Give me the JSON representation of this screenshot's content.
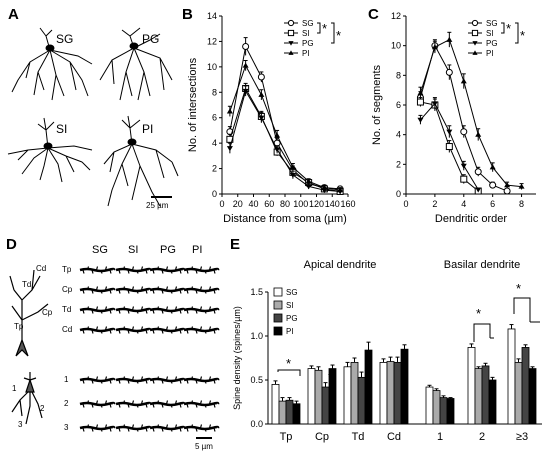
{
  "panels": {
    "A": "A",
    "B": "B",
    "C": "C",
    "D": "D",
    "E": "E"
  },
  "panel_a": {
    "labels": [
      "SG",
      "PG",
      "SI",
      "PI"
    ],
    "scale": "25 µm"
  },
  "panel_d": {
    "cols": [
      "SG",
      "SI",
      "PG",
      "PI"
    ],
    "rows_apical": [
      "Tp",
      "Cp",
      "Td",
      "Cd"
    ],
    "rows_basal": [
      "1",
      "2",
      "3"
    ],
    "neuron_labels": [
      "Cd",
      "Td",
      "Cp",
      "Tp",
      "1",
      "2",
      "3"
    ],
    "scale": "5 µm"
  },
  "chart_data": [
    {
      "type": "line",
      "panel": "B",
      "ylabel": "No. of intersections",
      "xlabel": "Distance from soma (µm)",
      "xlim": [
        0,
        160
      ],
      "ylim": [
        0,
        14
      ],
      "xticks": [
        0,
        20,
        40,
        60,
        80,
        100,
        120,
        140,
        160
      ],
      "yticks": [
        0,
        2,
        4,
        6,
        8,
        10,
        12,
        14
      ],
      "x": [
        10,
        30,
        50,
        70,
        90,
        110,
        130,
        150
      ],
      "series": [
        {
          "name": "SG",
          "marker": "circle-open",
          "values": [
            4.9,
            11.6,
            9.2,
            4.0,
            1.9,
            0.8,
            0.5,
            0.4
          ],
          "errors": [
            0.4,
            0.7,
            0.4,
            0.4,
            0.3,
            0.2,
            0.2,
            0.2
          ]
        },
        {
          "name": "SI",
          "marker": "square-open",
          "values": [
            4.3,
            8.3,
            6.1,
            3.3,
            1.7,
            0.9,
            0.4,
            0.2
          ],
          "errors": [
            0.4,
            0.4,
            0.4,
            0.3,
            0.3,
            0.2,
            0.2,
            0.1
          ]
        },
        {
          "name": "PG",
          "marker": "triangle-down",
          "values": [
            3.6,
            8.1,
            6.0,
            3.5,
            1.5,
            0.6,
            0.3,
            0.2
          ],
          "errors": [
            0.4,
            0.4,
            0.4,
            0.3,
            0.3,
            0.2,
            0.2,
            0.1
          ]
        },
        {
          "name": "PI",
          "marker": "triangle-up",
          "values": [
            6.5,
            10.1,
            7.8,
            4.6,
            2.1,
            1.0,
            0.5,
            0.3
          ],
          "errors": [
            0.4,
            0.4,
            0.4,
            0.4,
            0.3,
            0.2,
            0.2,
            0.2
          ]
        }
      ],
      "sig": [
        "*",
        "*"
      ]
    },
    {
      "type": "line",
      "panel": "C",
      "ylabel": "No. of segments",
      "xlabel": "Dendritic order",
      "xlim": [
        0,
        9
      ],
      "ylim": [
        0,
        12
      ],
      "xticks": [
        0,
        2,
        4,
        6,
        8
      ],
      "yticks": [
        0,
        2,
        4,
        6,
        8,
        10,
        12
      ],
      "x": [
        1,
        2,
        3,
        4,
        5,
        6,
        7,
        8
      ],
      "series": [
        {
          "name": "SG",
          "marker": "circle-open",
          "values": [
            6.5,
            10.0,
            8.2,
            4.2,
            1.5,
            0.6,
            0.2,
            null
          ],
          "errors": [
            0.4,
            0.4,
            0.5,
            0.4,
            0.3,
            0.2,
            0.1,
            null
          ]
        },
        {
          "name": "SI",
          "marker": "square-open",
          "values": [
            6.2,
            6.0,
            3.2,
            1.0,
            0.2,
            null,
            null,
            null
          ],
          "errors": [
            0.3,
            0.4,
            0.4,
            0.3,
            0.1,
            null,
            null,
            null
          ]
        },
        {
          "name": "PG",
          "marker": "triangle-down",
          "values": [
            5.0,
            6.1,
            4.2,
            1.9,
            0.3,
            null,
            null,
            null
          ],
          "errors": [
            0.3,
            0.4,
            0.4,
            0.3,
            0.1,
            null,
            null,
            null
          ]
        },
        {
          "name": "PI",
          "marker": "triangle-up",
          "values": [
            6.8,
            9.9,
            10.4,
            7.6,
            4.0,
            1.8,
            0.6,
            0.5
          ],
          "errors": [
            0.4,
            0.4,
            0.5,
            0.5,
            0.4,
            0.3,
            0.2,
            0.2
          ]
        }
      ],
      "sig": [
        "*",
        "*"
      ]
    },
    {
      "type": "bar",
      "panel": "E",
      "ylabel": "Spine density (spines/µm)",
      "ylim": [
        0,
        1.5
      ],
      "yticks": [
        "0.0",
        "0.5",
        "1.0",
        "1.5"
      ],
      "groups": [
        "Apical dendrite",
        "Basilar dendrite"
      ],
      "categories": [
        "Tp",
        "Cp",
        "Td",
        "Cd",
        "1",
        "2",
        "≥3"
      ],
      "series": [
        {
          "name": "SG",
          "color": "#ffffff",
          "values": [
            0.45,
            0.63,
            0.65,
            0.7,
            0.42,
            0.87,
            1.08
          ],
          "errors": [
            0.04,
            0.03,
            0.05,
            0.04,
            0.02,
            0.04,
            0.05
          ]
        },
        {
          "name": "SI",
          "color": "#aaaaaa",
          "values": [
            0.26,
            0.61,
            0.7,
            0.71,
            0.38,
            0.63,
            0.7
          ],
          "errors": [
            0.04,
            0.04,
            0.05,
            0.05,
            0.02,
            0.02,
            0.04
          ]
        },
        {
          "name": "PG",
          "color": "#444444",
          "values": [
            0.27,
            0.42,
            0.53,
            0.7,
            0.3,
            0.66,
            0.87
          ],
          "errors": [
            0.03,
            0.05,
            0.06,
            0.06,
            0.02,
            0.03,
            0.03
          ]
        },
        {
          "name": "PI",
          "color": "#000000",
          "values": [
            0.23,
            0.63,
            0.84,
            0.85,
            0.29,
            0.5,
            0.63
          ],
          "errors": [
            0.03,
            0.04,
            0.09,
            0.05,
            0.01,
            0.03,
            0.02
          ]
        }
      ],
      "sig": [
        "*",
        "*",
        "*",
        "*"
      ]
    }
  ]
}
